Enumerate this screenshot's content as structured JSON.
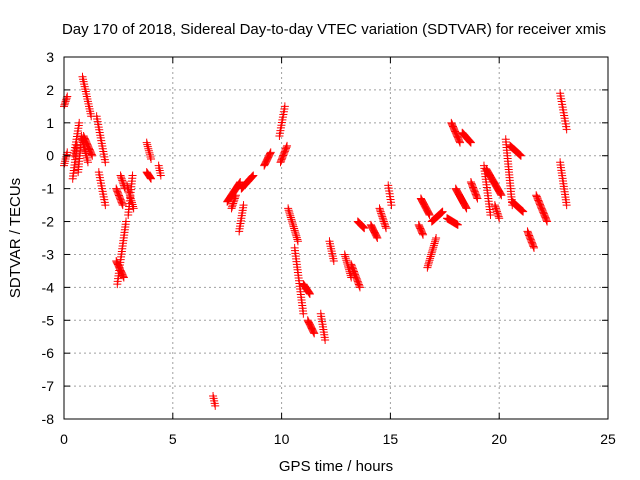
{
  "chart_data": {
    "type": "scatter",
    "title": "Day 170 of 2018, Sidereal Day-to-day VTEC variation (SDTVAR) for receiver xmis",
    "xlabel": "GPS time / hours",
    "ylabel": "SDTVAR / TECUs",
    "xlim": [
      0,
      25
    ],
    "ylim": [
      -8,
      3
    ],
    "xticks": [
      "0",
      "5",
      "10",
      "15",
      "20",
      "25"
    ],
    "yticks": [
      "3",
      "2",
      "1",
      "0",
      "-1",
      "-2",
      "-3",
      "-4",
      "-5",
      "-6",
      "-7",
      "-8"
    ],
    "grid": true,
    "marker": "+",
    "marker_color": "#ff0000",
    "segments": [
      {
        "x": [
          0.0,
          0.15
        ],
        "y": [
          -0.3,
          0.1
        ]
      },
      {
        "x": [
          0.0,
          0.15
        ],
        "y": [
          1.5,
          1.8
        ]
      },
      {
        "x": [
          0.45,
          0.7
        ],
        "y": [
          0.0,
          1.0
        ]
      },
      {
        "x": [
          0.4,
          0.6
        ],
        "y": [
          -0.7,
          0.3
        ]
      },
      {
        "x": [
          0.65,
          0.8
        ],
        "y": [
          -0.5,
          0.5
        ]
      },
      {
        "x": [
          0.85,
          1.25
        ],
        "y": [
          2.4,
          1.2
        ]
      },
      {
        "x": [
          0.8,
          1.1
        ],
        "y": [
          0.6,
          -0.2
        ]
      },
      {
        "x": [
          0.9,
          1.3
        ],
        "y": [
          0.6,
          0.0
        ]
      },
      {
        "x": [
          1.5,
          1.9
        ],
        "y": [
          1.2,
          -0.2
        ]
      },
      {
        "x": [
          1.6,
          1.9
        ],
        "y": [
          -0.5,
          -1.5
        ]
      },
      {
        "x": [
          2.4,
          2.7
        ],
        "y": [
          -1.0,
          -1.5
        ]
      },
      {
        "x": [
          2.45,
          2.85
        ],
        "y": [
          -3.9,
          -2.0
        ]
      },
      {
        "x": [
          2.4,
          2.75
        ],
        "y": [
          -3.2,
          -3.7
        ]
      },
      {
        "x": [
          2.6,
          2.8
        ],
        "y": [
          -0.6,
          -1.0
        ]
      },
      {
        "x": [
          2.95,
          3.15
        ],
        "y": [
          -1.8,
          -0.6
        ]
      },
      {
        "x": [
          2.9,
          3.2
        ],
        "y": [
          -0.9,
          -1.6
        ]
      },
      {
        "x": [
          3.8,
          4.0
        ],
        "y": [
          0.4,
          -0.1
        ]
      },
      {
        "x": [
          3.8,
          4.0
        ],
        "y": [
          -0.5,
          -0.7
        ]
      },
      {
        "x": [
          4.35,
          4.45
        ],
        "y": [
          -0.3,
          -0.6
        ]
      },
      {
        "x": [
          6.85,
          6.95
        ],
        "y": [
          -7.3,
          -7.6
        ]
      },
      {
        "x": [
          7.5,
          8.1
        ],
        "y": [
          -1.4,
          -0.8
        ]
      },
      {
        "x": [
          7.7,
          7.9
        ],
        "y": [
          -1.6,
          -1.2
        ]
      },
      {
        "x": [
          8.05,
          8.25
        ],
        "y": [
          -2.3,
          -1.5
        ]
      },
      {
        "x": [
          8.15,
          8.7
        ],
        "y": [
          -1.0,
          -0.6
        ]
      },
      {
        "x": [
          9.2,
          9.5
        ],
        "y": [
          -0.3,
          0.1
        ]
      },
      {
        "x": [
          9.9,
          10.15
        ],
        "y": [
          0.6,
          1.5
        ]
      },
      {
        "x": [
          9.95,
          10.25
        ],
        "y": [
          -0.2,
          0.3
        ]
      },
      {
        "x": [
          10.3,
          10.75
        ],
        "y": [
          -1.6,
          -2.6
        ]
      },
      {
        "x": [
          10.6,
          11.0
        ],
        "y": [
          -2.8,
          -4.8
        ]
      },
      {
        "x": [
          11.0,
          11.3
        ],
        "y": [
          -3.9,
          -4.2
        ]
      },
      {
        "x": [
          11.2,
          11.5
        ],
        "y": [
          -5.0,
          -5.4
        ]
      },
      {
        "x": [
          11.8,
          12.0
        ],
        "y": [
          -4.8,
          -5.6
        ]
      },
      {
        "x": [
          12.2,
          12.4
        ],
        "y": [
          -2.6,
          -3.2
        ]
      },
      {
        "x": [
          12.9,
          13.2
        ],
        "y": [
          -3.0,
          -3.7
        ]
      },
      {
        "x": [
          13.2,
          13.6
        ],
        "y": [
          -3.3,
          -4.0
        ]
      },
      {
        "x": [
          13.5,
          13.8
        ],
        "y": [
          -2.0,
          -2.2
        ]
      },
      {
        "x": [
          14.1,
          14.4
        ],
        "y": [
          -2.1,
          -2.5
        ]
      },
      {
        "x": [
          14.5,
          14.8
        ],
        "y": [
          -1.6,
          -2.2
        ]
      },
      {
        "x": [
          14.9,
          15.05
        ],
        "y": [
          -0.9,
          -1.5
        ]
      },
      {
        "x": [
          16.3,
          16.5
        ],
        "y": [
          -2.1,
          -2.4
        ]
      },
      {
        "x": [
          16.4,
          16.8
        ],
        "y": [
          -1.3,
          -1.8
        ]
      },
      {
        "x": [
          16.7,
          17.1
        ],
        "y": [
          -3.4,
          -2.5
        ]
      },
      {
        "x": [
          16.9,
          17.4
        ],
        "y": [
          -2.0,
          -1.7
        ]
      },
      {
        "x": [
          17.6,
          18.1
        ],
        "y": [
          -1.9,
          -2.1
        ]
      },
      {
        "x": [
          17.8,
          18.2
        ],
        "y": [
          1.0,
          0.4
        ]
      },
      {
        "x": [
          18.0,
          18.5
        ],
        "y": [
          -1.0,
          -1.6
        ]
      },
      {
        "x": [
          18.3,
          18.7
        ],
        "y": [
          0.7,
          0.4
        ]
      },
      {
        "x": [
          18.7,
          19.0
        ],
        "y": [
          -0.8,
          -1.3
        ]
      },
      {
        "x": [
          19.3,
          19.6
        ],
        "y": [
          -0.3,
          -1.8
        ]
      },
      {
        "x": [
          19.4,
          20.1
        ],
        "y": [
          -0.4,
          -1.2
        ]
      },
      {
        "x": [
          19.8,
          20.0
        ],
        "y": [
          -1.5,
          -1.9
        ]
      },
      {
        "x": [
          20.3,
          20.6
        ],
        "y": [
          0.5,
          -1.5
        ]
      },
      {
        "x": [
          20.5,
          21.0
        ],
        "y": [
          0.3,
          0.0
        ]
      },
      {
        "x": [
          20.6,
          21.1
        ],
        "y": [
          -1.4,
          -1.7
        ]
      },
      {
        "x": [
          21.3,
          21.6
        ],
        "y": [
          -2.3,
          -2.8
        ]
      },
      {
        "x": [
          21.7,
          22.2
        ],
        "y": [
          -1.2,
          -2.0
        ]
      },
      {
        "x": [
          22.8,
          23.1
        ],
        "y": [
          -0.2,
          -1.5
        ]
      },
      {
        "x": [
          22.8,
          23.1
        ],
        "y": [
          1.9,
          0.8
        ]
      }
    ]
  }
}
